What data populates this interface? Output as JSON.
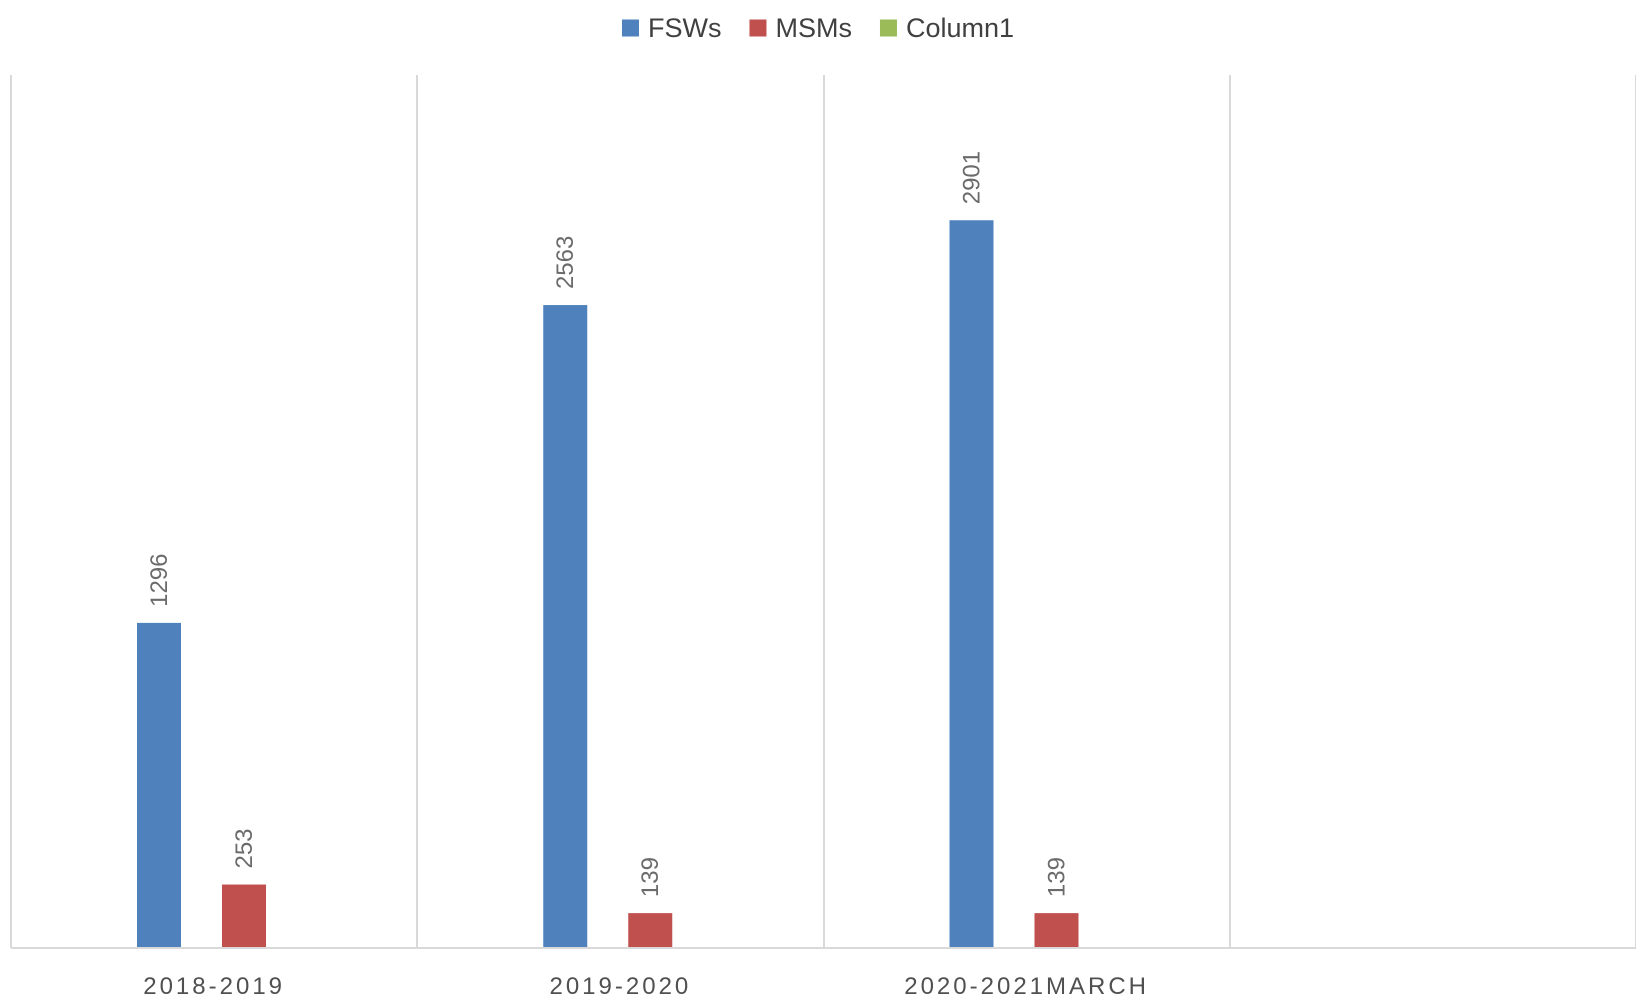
{
  "chart_data": {
    "type": "bar",
    "categories": [
      "2018-2019",
      "2019-2020",
      "2020-2021MARCH",
      ""
    ],
    "series": [
      {
        "name": "FSWs",
        "color": "#4f81bd",
        "values": [
          1296,
          2563,
          2901,
          null
        ]
      },
      {
        "name": "MSMs",
        "color": "#c0504d",
        "values": [
          253,
          139,
          139,
          null
        ]
      },
      {
        "name": "Column1",
        "color": "#9bbb59",
        "values": [
          null,
          null,
          null,
          null
        ]
      }
    ],
    "data_labels": true,
    "legend_position": "top",
    "grid": "vertical category separators",
    "ylim": [
      0,
      3500
    ]
  }
}
